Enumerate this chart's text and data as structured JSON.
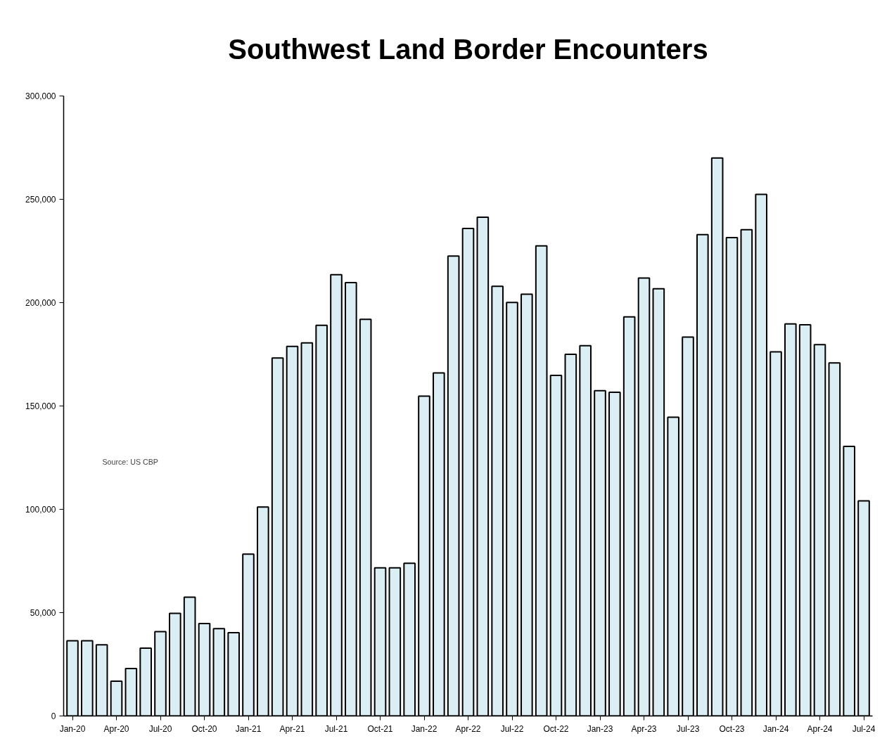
{
  "chart_data": {
    "type": "bar",
    "title": "Southwest Land Border Encounters",
    "categories": [
      "Jan-20",
      null,
      null,
      "Apr-20",
      null,
      null,
      "Jul-20",
      null,
      null,
      "Oct-20",
      null,
      null,
      "Jan-21",
      null,
      null,
      "Apr-21",
      null,
      null,
      "Jul-21",
      null,
      null,
      "Oct-21",
      null,
      null,
      "Jan-22",
      null,
      null,
      "Apr-22",
      null,
      null,
      "Jul-22",
      null,
      null,
      "Oct-22",
      null,
      null,
      "Jan-23",
      null,
      null,
      "Apr-23",
      null,
      null,
      "Jul-23",
      null,
      null,
      "Oct-23",
      null,
      null,
      "Jan-24",
      null,
      null,
      "Apr-24",
      null,
      null,
      "Jul-24"
    ],
    "values": [
      36400,
      36400,
      34400,
      16800,
      23000,
      32800,
      40800,
      49700,
      57500,
      44700,
      42300,
      40300,
      78300,
      101100,
      173200,
      178800,
      180500,
      189000,
      213500,
      209700,
      191900,
      71700,
      71700,
      73900,
      154800,
      166000,
      222500,
      235900,
      241300,
      207900,
      200100,
      204100,
      227500,
      164800,
      175000,
      179200,
      157400,
      156600,
      193100,
      211900,
      206700,
      144600,
      183300,
      232900,
      270000,
      231500,
      235300,
      252400,
      176200,
      189700,
      189300,
      179700,
      170800,
      130400,
      104100
    ],
    "color": "#daeef3",
    "ylim": [
      0,
      300000
    ],
    "yticks": [
      {
        "value": 0,
        "label": "0"
      },
      {
        "value": 50000,
        "label": "50,000"
      },
      {
        "value": 100000,
        "label": "100,000"
      },
      {
        "value": 150000,
        "label": "150,000"
      },
      {
        "value": 200000,
        "label": "200,000"
      },
      {
        "value": 250000,
        "label": "250,000"
      },
      {
        "value": 300000,
        "label": "300,000"
      }
    ],
    "annotations": [
      "Source: US CBP"
    ],
    "grid": false
  }
}
